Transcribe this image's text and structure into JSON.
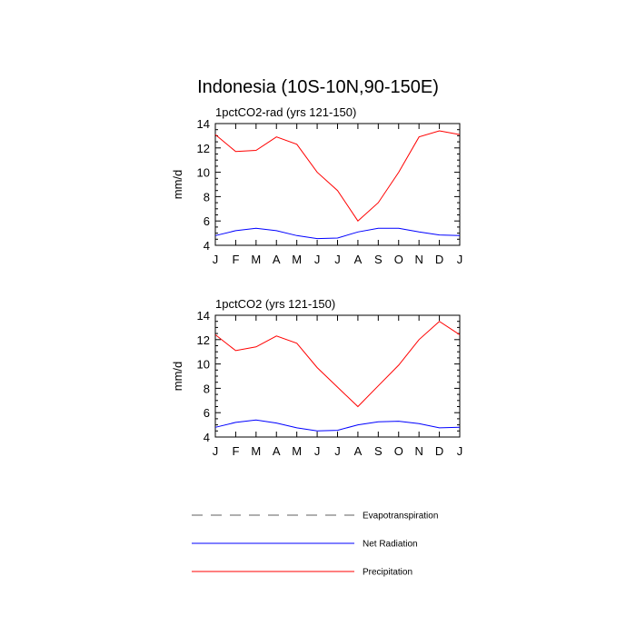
{
  "title": "Indonesia (10S-10N,90-150E)",
  "chart_data": [
    {
      "type": "line",
      "subtitle": "1pctCO2-rad (yrs 121-150)",
      "ylabel": "mm/d",
      "xlabel": "",
      "categories": [
        "J",
        "F",
        "M",
        "A",
        "M",
        "J",
        "J",
        "A",
        "S",
        "O",
        "N",
        "D",
        "J"
      ],
      "ylim": [
        4,
        14
      ],
      "yticks": [
        "4",
        "6",
        "8",
        "10",
        "12",
        "14"
      ],
      "series": [
        {
          "name": "Precipitation",
          "color": "#ff0000",
          "values": [
            13.1,
            11.7,
            11.8,
            12.9,
            12.3,
            10.0,
            8.5,
            6.0,
            7.5,
            10.0,
            12.9,
            13.4,
            13.1
          ]
        },
        {
          "name": "Net Radiation",
          "color": "#0000ff",
          "values": [
            4.8,
            5.2,
            5.4,
            5.2,
            4.8,
            4.55,
            4.6,
            5.1,
            5.4,
            5.4,
            5.1,
            4.85,
            4.8
          ]
        }
      ]
    },
    {
      "type": "line",
      "subtitle": "1pctCO2 (yrs 121-150)",
      "ylabel": "mm/d",
      "xlabel": "",
      "categories": [
        "J",
        "F",
        "M",
        "A",
        "M",
        "J",
        "J",
        "A",
        "S",
        "O",
        "N",
        "D",
        "J"
      ],
      "ylim": [
        4,
        14
      ],
      "yticks": [
        "4",
        "6",
        "8",
        "10",
        "12",
        "14"
      ],
      "series": [
        {
          "name": "Precipitation",
          "color": "#ff0000",
          "values": [
            12.4,
            11.1,
            11.4,
            12.3,
            11.7,
            9.7,
            8.1,
            6.5,
            8.2,
            9.9,
            12.0,
            13.5,
            12.4
          ]
        },
        {
          "name": "Net Radiation",
          "color": "#0000ff",
          "values": [
            4.8,
            5.2,
            5.4,
            5.15,
            4.75,
            4.5,
            4.55,
            5.0,
            5.25,
            5.3,
            5.1,
            4.75,
            4.8
          ]
        }
      ]
    }
  ],
  "legend": {
    "items": [
      {
        "label": "Evapotranspiration",
        "color": "#7f7f7f",
        "style": "dashed"
      },
      {
        "label": "Net Radiation",
        "color": "#0000ff",
        "style": "solid"
      },
      {
        "label": "Precipitation",
        "color": "#ff0000",
        "style": "solid"
      }
    ]
  }
}
